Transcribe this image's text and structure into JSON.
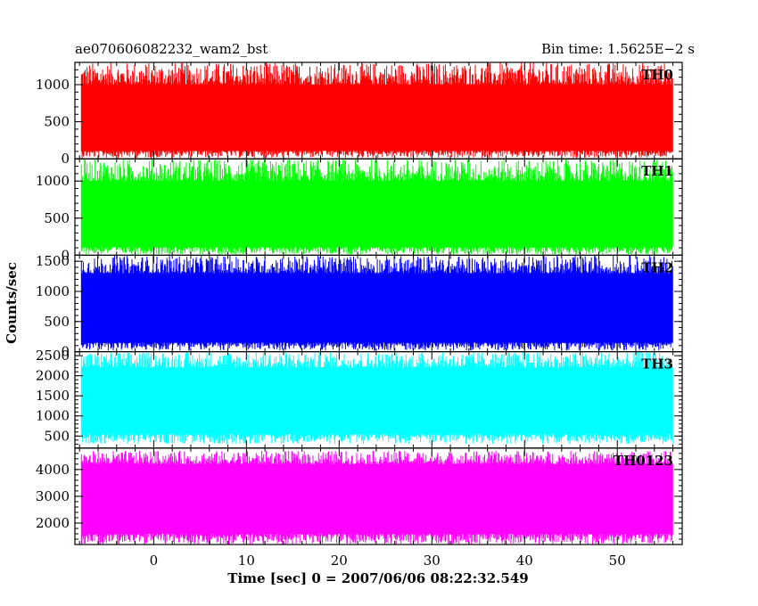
{
  "header": {
    "title": "ae070606082232_wam2_bst",
    "bin_time": "Bin time: 1.5625E−2 s"
  },
  "chart_data": {
    "type": "line",
    "xlabel": "Time [sec] 0 = 2007/06/06 08:22:32.549",
    "ylabel": "Counts/sec",
    "xlim": [
      -8.5,
      57
    ],
    "x_ticks": [
      0,
      10,
      20,
      30,
      40,
      50
    ],
    "data_x_range": [
      -7.8,
      56
    ],
    "grid": false,
    "panels": [
      {
        "name": "TH0",
        "color": "#ff0000",
        "ylim": [
          0,
          1300
        ],
        "y_ticks": [
          0,
          500,
          1000
        ],
        "mean": 500,
        "band_low": 110,
        "band_high": 1000,
        "spike_min": 10,
        "spike_max": 1300
      },
      {
        "name": "TH1",
        "color": "#00ff00",
        "ylim": [
          0,
          1300
        ],
        "y_ticks": [
          0,
          500,
          1000
        ],
        "mean": 500,
        "band_low": 110,
        "band_high": 1000,
        "spike_min": 10,
        "spike_max": 1300
      },
      {
        "name": "TH2",
        "color": "#0000ff",
        "ylim": [
          0,
          1600
        ],
        "y_ticks": [
          0,
          500,
          1000,
          1500
        ],
        "mean": 700,
        "band_low": 150,
        "band_high": 1300,
        "spike_min": 20,
        "spike_max": 1600
      },
      {
        "name": "TH3",
        "color": "#00ffff",
        "ylim": [
          200,
          2600
        ],
        "y_ticks": [
          500,
          1000,
          1500,
          2000,
          2500
        ],
        "mean": 1350,
        "band_low": 550,
        "band_high": 2200,
        "spike_min": 300,
        "spike_max": 2600
      },
      {
        "name": "TH0123",
        "color": "#ff00ff",
        "ylim": [
          1200,
          4800
        ],
        "y_ticks": [
          2000,
          3000,
          4000
        ],
        "mean": 2850,
        "band_low": 1600,
        "band_high": 4200,
        "spike_min": 1200,
        "spike_max": 4700
      }
    ]
  }
}
